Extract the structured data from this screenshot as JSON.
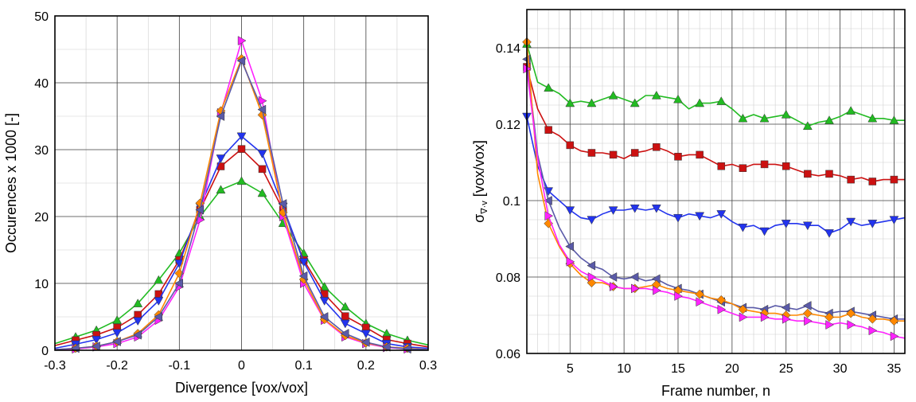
{
  "chart_data": [
    {
      "type": "line",
      "title": "",
      "xlabel": "Divergence [vox/vox]",
      "ylabel": "Occurences x 1000 [-]",
      "xlim": [
        -0.3,
        0.3
      ],
      "ylim": [
        0,
        50
      ],
      "xticks": [
        "-0.3",
        "-0.2",
        "-0.1",
        "0",
        "0.1",
        "0.2",
        "0.3"
      ],
      "yticks": [
        "0",
        "10",
        "20",
        "30",
        "40",
        "50"
      ],
      "grid": true,
      "x": [
        -0.3,
        -0.2667,
        -0.2333,
        -0.2,
        -0.1667,
        -0.1333,
        -0.1,
        -0.0667,
        -0.0333,
        0,
        0.0333,
        0.0667,
        0.1,
        0.1333,
        0.1667,
        0.2,
        0.2333,
        0.2667,
        0.3
      ],
      "series": [
        {
          "color": "#22bb22",
          "marker": "triangle-up",
          "values": [
            1.0,
            2.0,
            3.0,
            4.5,
            7.0,
            10.5,
            14.5,
            20.0,
            24.0,
            25.3,
            23.5,
            19.0,
            14.5,
            9.5,
            6.5,
            4.0,
            2.5,
            1.5,
            0.8
          ]
        },
        {
          "color": "#cc1111",
          "marker": "square",
          "values": [
            0.7,
            1.5,
            2.3,
            3.4,
            5.3,
            8.4,
            13.5,
            21.0,
            27.5,
            30.1,
            27.1,
            21.0,
            13.5,
            8.4,
            5.1,
            3.4,
            1.6,
            1.0,
            0.5
          ]
        },
        {
          "color": "#2233ee",
          "marker": "triangle-down",
          "values": [
            0.3,
            0.9,
            1.6,
            2.6,
            4.4,
            7.4,
            13.0,
            21.5,
            28.7,
            32.0,
            29.4,
            21.5,
            13.2,
            7.4,
            4.0,
            2.5,
            1.0,
            0.5,
            0.3
          ]
        },
        {
          "color": "#ff22ff",
          "marker": "triangle-right",
          "values": [
            0.1,
            0.2,
            0.5,
            1.0,
            2.0,
            4.5,
            9.5,
            19.5,
            35.5,
            46.3,
            37.3,
            20.0,
            10.0,
            4.5,
            2.0,
            1.0,
            0.4,
            0.2,
            0.1
          ]
        },
        {
          "color": "#ff8800",
          "marker": "diamond",
          "values": [
            0.1,
            0.3,
            0.6,
            1.3,
            2.5,
            5.3,
            11.5,
            22.0,
            35.8,
            43.6,
            35.2,
            20.6,
            10.6,
            4.6,
            2.2,
            1.1,
            0.5,
            0.3,
            0.1
          ]
        },
        {
          "color": "#5a5aa8",
          "marker": "triangle-left",
          "values": [
            0.1,
            0.3,
            0.6,
            1.3,
            2.3,
            5.0,
            10.0,
            21.0,
            35.0,
            43.3,
            36.0,
            21.9,
            11.1,
            5.0,
            2.5,
            1.2,
            0.5,
            0.2,
            0.1
          ]
        }
      ]
    },
    {
      "type": "line",
      "title": "",
      "xlabel": "Frame number, n",
      "ylabel_main": "σ",
      "ylabel_sub": "∇·v",
      "ylabel_unit": " [vox/vox]",
      "xlim": [
        1,
        36
      ],
      "ylim": [
        0.06,
        0.15
      ],
      "xticks": [
        "5",
        "10",
        "15",
        "20",
        "25",
        "30",
        "35"
      ],
      "yticks": [
        "0.06",
        "0.08",
        "0.1",
        "0.12",
        "0.14"
      ],
      "grid": true,
      "x": [
        1,
        2,
        3,
        4,
        5,
        6,
        7,
        8,
        9,
        10,
        11,
        12,
        13,
        14,
        15,
        16,
        17,
        18,
        19,
        20,
        21,
        22,
        23,
        24,
        25,
        26,
        27,
        28,
        29,
        30,
        31,
        32,
        33,
        34,
        35,
        36
      ],
      "series": [
        {
          "color": "#22bb22",
          "marker": "triangle-up",
          "values": [
            0.141,
            0.131,
            0.1295,
            0.128,
            0.1255,
            0.126,
            0.1255,
            0.1265,
            0.1275,
            0.1265,
            0.1255,
            0.1275,
            0.1275,
            0.127,
            0.1265,
            0.124,
            0.1255,
            0.1255,
            0.126,
            0.124,
            0.1215,
            0.1225,
            0.1215,
            0.122,
            0.1225,
            0.121,
            0.1195,
            0.1205,
            0.121,
            0.122,
            0.1235,
            0.1225,
            0.1215,
            0.1215,
            0.121,
            0.121
          ]
        },
        {
          "color": "#cc1111",
          "marker": "square",
          "values": [
            0.135,
            0.124,
            0.1185,
            0.117,
            0.1145,
            0.113,
            0.1125,
            0.1125,
            0.112,
            0.111,
            0.1125,
            0.113,
            0.114,
            0.113,
            0.1115,
            0.112,
            0.112,
            0.1105,
            0.109,
            0.1095,
            0.1085,
            0.1095,
            0.1095,
            0.1095,
            0.109,
            0.108,
            0.107,
            0.1065,
            0.107,
            0.1065,
            0.1055,
            0.106,
            0.105,
            0.1055,
            0.1055,
            0.1055
          ]
        },
        {
          "color": "#2233ee",
          "marker": "triangle-down",
          "values": [
            0.122,
            0.109,
            0.1025,
            0.1,
            0.0975,
            0.0955,
            0.095,
            0.0965,
            0.0975,
            0.0975,
            0.098,
            0.0975,
            0.098,
            0.0965,
            0.0955,
            0.0965,
            0.096,
            0.0955,
            0.0965,
            0.0945,
            0.093,
            0.0935,
            0.092,
            0.0935,
            0.094,
            0.094,
            0.0935,
            0.0935,
            0.0915,
            0.0925,
            0.0945,
            0.0935,
            0.094,
            0.0945,
            0.095,
            0.0955
          ]
        },
        {
          "color": "#5a5aa8",
          "marker": "triangle-left",
          "values": [
            0.137,
            0.112,
            0.1,
            0.093,
            0.088,
            0.085,
            0.083,
            0.082,
            0.08,
            0.0795,
            0.08,
            0.079,
            0.0795,
            0.078,
            0.077,
            0.0765,
            0.0755,
            0.0745,
            0.0735,
            0.073,
            0.072,
            0.072,
            0.0715,
            0.0725,
            0.072,
            0.0715,
            0.0725,
            0.071,
            0.0705,
            0.071,
            0.071,
            0.0705,
            0.07,
            0.0695,
            0.069,
            0.069
          ]
        },
        {
          "color": "#ff8800",
          "marker": "diamond",
          "values": [
            0.1415,
            0.107,
            0.094,
            0.088,
            0.0835,
            0.0805,
            0.0785,
            0.0785,
            0.0775,
            0.077,
            0.077,
            0.0775,
            0.078,
            0.077,
            0.0765,
            0.076,
            0.0755,
            0.0745,
            0.074,
            0.073,
            0.0715,
            0.071,
            0.0705,
            0.0705,
            0.07,
            0.07,
            0.0705,
            0.07,
            0.0695,
            0.0695,
            0.0705,
            0.0695,
            0.069,
            0.069,
            0.0685,
            0.0685
          ]
        },
        {
          "color": "#ff22ff",
          "marker": "triangle-right",
          "values": [
            0.1345,
            0.111,
            0.096,
            0.0885,
            0.084,
            0.0815,
            0.08,
            0.079,
            0.0775,
            0.077,
            0.077,
            0.077,
            0.0765,
            0.076,
            0.075,
            0.0745,
            0.0735,
            0.0725,
            0.0715,
            0.0705,
            0.0695,
            0.0695,
            0.0695,
            0.069,
            0.069,
            0.0685,
            0.0685,
            0.068,
            0.0675,
            0.068,
            0.0675,
            0.067,
            0.066,
            0.0655,
            0.0645,
            0.064
          ]
        }
      ]
    }
  ]
}
